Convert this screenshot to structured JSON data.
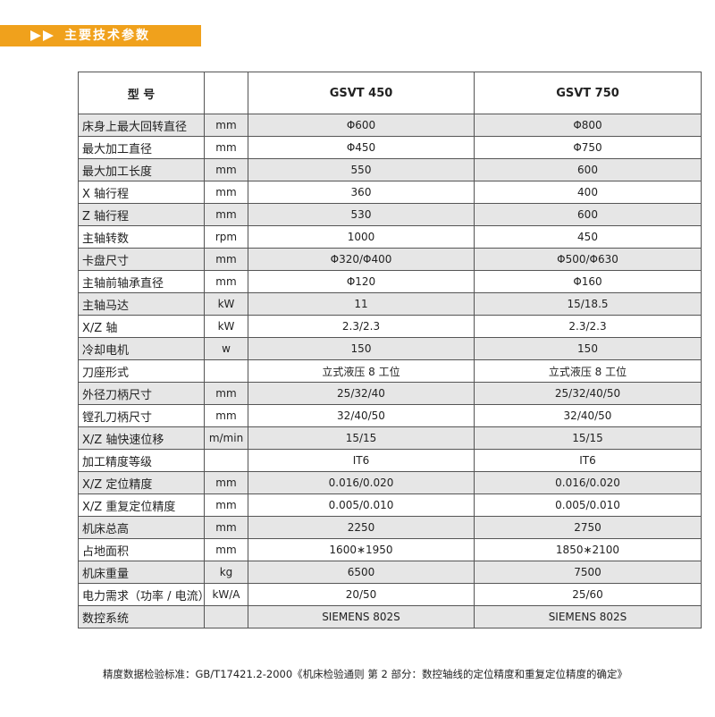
{
  "header": {
    "title": "主要技术参数"
  },
  "table": {
    "columns": [
      "型 号",
      "GSVT 450",
      "GSVT 750"
    ],
    "rows": [
      [
        "床身上最大回转直径",
        "mm",
        "Φ600",
        "Φ800"
      ],
      [
        "最大加工直径",
        "mm",
        "Φ450",
        "Φ750"
      ],
      [
        "最大加工长度",
        "mm",
        "550",
        "600"
      ],
      [
        "X 轴行程",
        "mm",
        "360",
        "400"
      ],
      [
        "Z 轴行程",
        "mm",
        "530",
        "600"
      ],
      [
        "主轴转数",
        "rpm",
        "1000",
        "450"
      ],
      [
        "卡盘尺寸",
        "mm",
        "Φ320/Φ400",
        "Φ500/Φ630"
      ],
      [
        "主轴前轴承直径",
        "mm",
        "Φ120",
        "Φ160"
      ],
      [
        "主轴马达",
        "kW",
        "11",
        "15/18.5"
      ],
      [
        "X/Z 轴",
        "kW",
        "2.3/2.3",
        "2.3/2.3"
      ],
      [
        "冷却电机",
        "w",
        "150",
        "150"
      ],
      [
        "刀座形式",
        null,
        "立式液压 8 工位",
        "立式液压 8 工位"
      ],
      [
        "外径刀柄尺寸",
        "mm",
        "25/32/40",
        "25/32/40/50"
      ],
      [
        "镗孔刀柄尺寸",
        "mm",
        "32/40/50",
        "32/40/50"
      ],
      [
        "X/Z 轴快速位移",
        "m/min",
        "15/15",
        "15/15"
      ],
      [
        "加工精度等级",
        null,
        "IT6",
        "IT6"
      ],
      [
        "X/Z 定位精度",
        "mm",
        "0.016/0.020",
        "0.016/0.020"
      ],
      [
        "X/Z 重复定位精度",
        "mm",
        "0.005/0.010",
        "0.005/0.010"
      ],
      [
        "机床总高",
        "mm",
        "2250",
        "2750"
      ],
      [
        "占地面积",
        "mm",
        "1600∗1950",
        "1850∗2100"
      ],
      [
        "机床重量",
        "kg",
        "6500",
        "7500"
      ],
      [
        "电力需求（功率 / 电流）",
        "kW/A",
        "20/50",
        "25/60"
      ],
      [
        "数控系统",
        null,
        "SIEMENS 802S",
        "SIEMENS 802S"
      ]
    ]
  },
  "footnote": "精度数据检验标准：GB/T17421.2-2000《机床检验通则 第 2 部分：数控轴线的定位精度和重复定位精度的确定》"
}
